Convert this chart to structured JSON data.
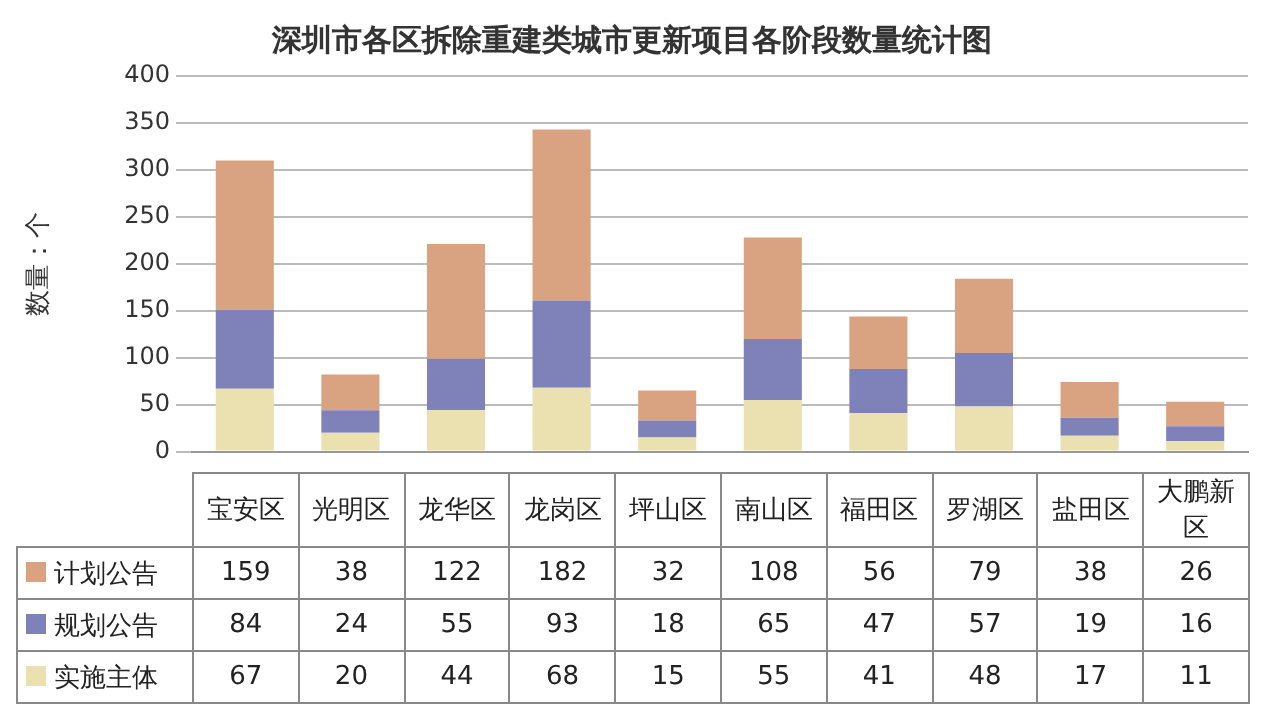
{
  "chart_data": {
    "type": "bar",
    "title": "深圳市各区拆除重建类城市更新项目各阶段数量统计图",
    "ylabel": "数量：个",
    "categories": [
      "宝安区",
      "光明区",
      "龙华区",
      "龙岗区",
      "坪山区",
      "南山区",
      "福田区",
      "罗湖区",
      "盐田区",
      "大鹏新区"
    ],
    "series": [
      {
        "name": "实施主体",
        "color": "#ebe0b0",
        "values": [
          67,
          20,
          44,
          68,
          15,
          55,
          41,
          48,
          17,
          11
        ]
      },
      {
        "name": "规划公告",
        "color": "#7f82b8",
        "values": [
          84,
          24,
          55,
          93,
          18,
          65,
          47,
          57,
          19,
          16
        ]
      },
      {
        "name": "计划公告",
        "color": "#d9a381",
        "values": [
          159,
          38,
          122,
          182,
          32,
          108,
          56,
          79,
          38,
          26
        ]
      }
    ],
    "stacked": true,
    "ylim": [
      0,
      400
    ],
    "yticks": [
      0,
      50,
      100,
      150,
      200,
      250,
      300,
      350,
      400
    ],
    "grid": "y",
    "legend": "bottom",
    "data_labels": true
  }
}
